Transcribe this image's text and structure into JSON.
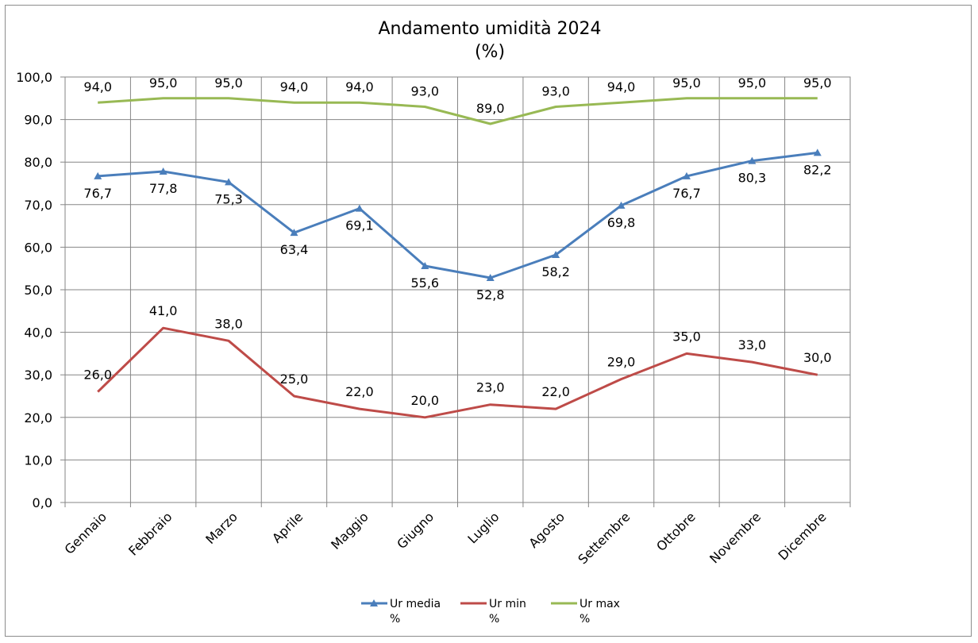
{
  "chart_data": {
    "type": "line",
    "title": "Andamento umidità 2024",
    "subtitle": "(%)",
    "categories": [
      "Gennaio",
      "Febbraio",
      "Marzo",
      "Aprile",
      "Maggio",
      "Giugno",
      "Luglio",
      "Agosto",
      "Settembre",
      "Ottobre",
      "Novembre",
      "Dicembre"
    ],
    "y_tick_labels": [
      "0,0",
      "10,0",
      "20,0",
      "30,0",
      "40,0",
      "50,0",
      "60,0",
      "70,0",
      "80,0",
      "90,0",
      "100,0"
    ],
    "ylim": [
      0,
      100
    ],
    "grid": true,
    "legend_position": "bottom",
    "series": [
      {
        "key": "media",
        "legend_line1": "Ur media",
        "legend_line2": "%",
        "color": "#4a7ebb",
        "marker": "triangle",
        "values": [
          76.7,
          77.8,
          75.3,
          63.4,
          69.1,
          55.6,
          52.8,
          58.2,
          69.8,
          76.7,
          80.3,
          82.2
        ],
        "labels": [
          "76,7",
          "77,8",
          "75,3",
          "63,4",
          "69,1",
          "55,6",
          "52,8",
          "58,2",
          "69,8",
          "76,7",
          "80,3",
          "82,2"
        ]
      },
      {
        "key": "min",
        "legend_line1": "Ur min",
        "legend_line2": "%",
        "color": "#be4b48",
        "marker": "none",
        "values": [
          26,
          41,
          38,
          25,
          22,
          20,
          23,
          22,
          29,
          35,
          33,
          30
        ],
        "labels": [
          "26,0",
          "41,0",
          "38,0",
          "25,0",
          "22,0",
          "20,0",
          "23,0",
          "22,0",
          "29,0",
          "35,0",
          "33,0",
          "30,0"
        ]
      },
      {
        "key": "max",
        "legend_line1": "Ur max",
        "legend_line2": "%",
        "color": "#98b954",
        "marker": "none",
        "values": [
          94,
          95,
          95,
          94,
          94,
          93,
          89,
          93,
          94,
          95,
          95,
          95
        ],
        "labels": [
          "94,0",
          "95,0",
          "95,0",
          "94,0",
          "94,0",
          "93,0",
          "89,0",
          "93,0",
          "94,0",
          "95,0",
          "95,0",
          "95,0"
        ]
      }
    ]
  }
}
